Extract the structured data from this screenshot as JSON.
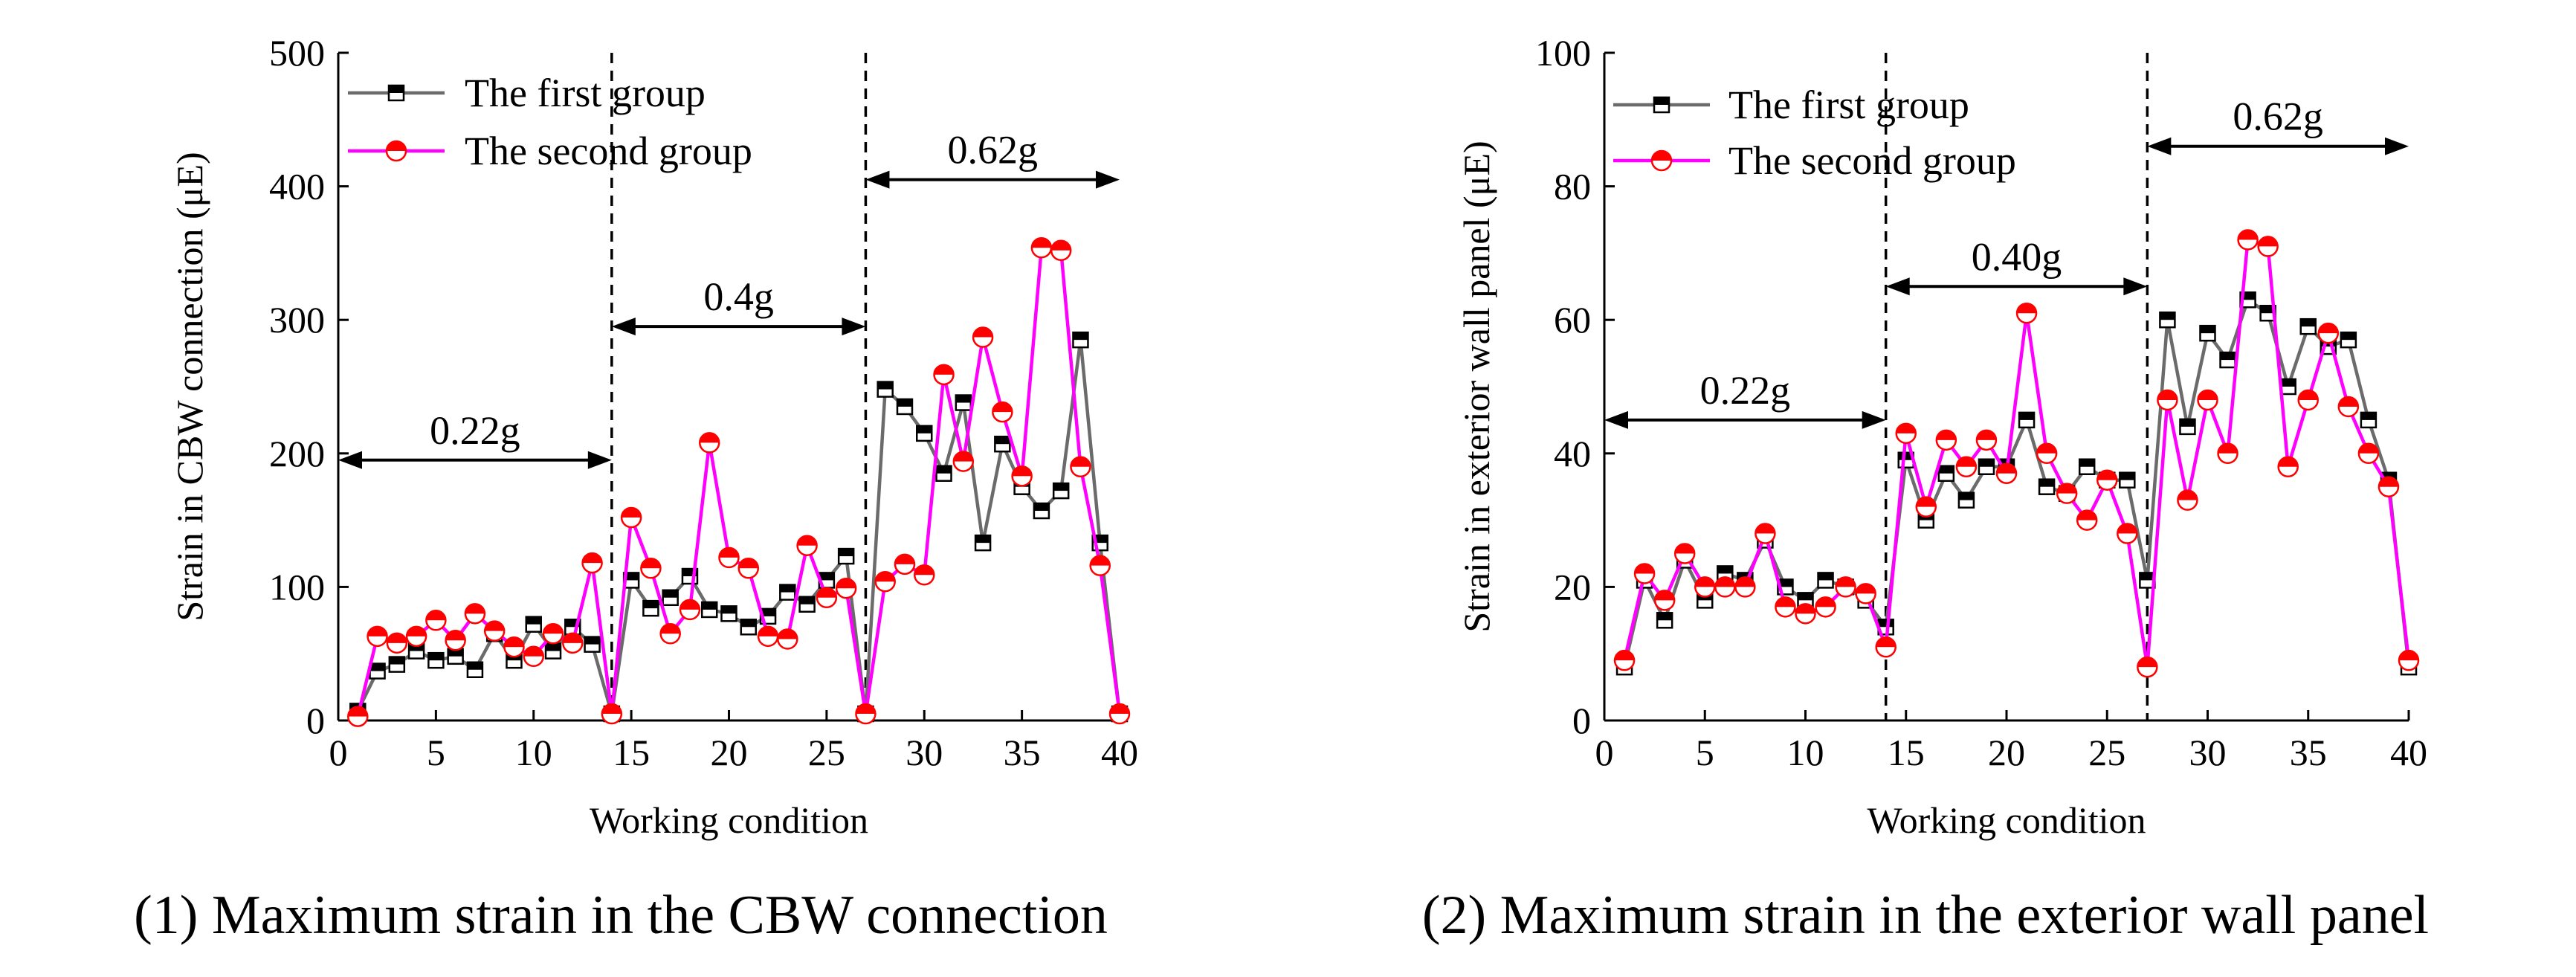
{
  "colors": {
    "series_first_line": "#6b6b6b",
    "series_first_marker": "#000000",
    "series_second_line": "#ff00ff",
    "series_second_marker": "#ff0000"
  },
  "chart_data": [
    {
      "type": "line",
      "caption": "(1) Maximum strain in the CBW connection",
      "xlabel": "Working condition",
      "ylabel": "Strain  in CBW connection (μE)",
      "xlim": [
        0,
        40
      ],
      "ylim": [
        0,
        500
      ],
      "xticks": [
        0,
        5,
        10,
        15,
        20,
        25,
        30,
        35,
        40
      ],
      "yticks": [
        0,
        100,
        200,
        300,
        400,
        500
      ],
      "legend_position": "top-left",
      "dividers": [
        14,
        27
      ],
      "regions": [
        {
          "label": "0.22g",
          "from": 0,
          "to": 14,
          "y": 195
        },
        {
          "label": "0.4g",
          "from": 14,
          "to": 27,
          "y": 295
        },
        {
          "label": "0.62g",
          "from": 27,
          "to": 40,
          "y": 405
        }
      ],
      "x": [
        1,
        2,
        3,
        4,
        5,
        6,
        7,
        8,
        9,
        10,
        11,
        12,
        13,
        14,
        15,
        16,
        17,
        18,
        19,
        20,
        21,
        22,
        23,
        24,
        25,
        26,
        27,
        28,
        29,
        30,
        31,
        32,
        33,
        34,
        35,
        36,
        37,
        38,
        39,
        40
      ],
      "series": [
        {
          "name": "The first group",
          "marker": "square",
          "values": [
            7,
            37,
            42,
            52,
            45,
            48,
            38,
            65,
            45,
            72,
            52,
            70,
            57,
            5,
            105,
            84,
            92,
            108,
            83,
            80,
            70,
            78,
            96,
            87,
            105,
            123,
            5,
            248,
            235,
            215,
            185,
            238,
            133,
            207,
            175,
            157,
            172,
            285,
            133,
            5
          ]
        },
        {
          "name": "The second group",
          "marker": "circle",
          "values": [
            3,
            63,
            58,
            63,
            75,
            60,
            80,
            67,
            55,
            48,
            65,
            58,
            118,
            5,
            152,
            114,
            65,
            83,
            208,
            122,
            114,
            63,
            61,
            131,
            92,
            99,
            5,
            104,
            117,
            109,
            259,
            194,
            287,
            231,
            183,
            354,
            352,
            190,
            116,
            5
          ]
        }
      ]
    },
    {
      "type": "line",
      "caption": "(2) Maximum strain in the exterior wall panel",
      "xlabel": "Working condition",
      "ylabel": "Strain in exterior wall panel (μE)",
      "xlim": [
        0,
        40
      ],
      "ylim": [
        0,
        100
      ],
      "xticks": [
        0,
        5,
        10,
        15,
        20,
        25,
        30,
        35,
        40
      ],
      "yticks": [
        0,
        20,
        40,
        60,
        80,
        100
      ],
      "legend_position": "top-left",
      "dividers": [
        14,
        27
      ],
      "regions": [
        {
          "label": "0.22g",
          "from": 0,
          "to": 14,
          "y": 45
        },
        {
          "label": "0.40g",
          "from": 14,
          "to": 27,
          "y": 65
        },
        {
          "label": "0.62g",
          "from": 27,
          "to": 40,
          "y": 86
        }
      ],
      "x": [
        1,
        2,
        3,
        4,
        5,
        6,
        7,
        8,
        9,
        10,
        11,
        12,
        13,
        14,
        15,
        16,
        17,
        18,
        19,
        20,
        21,
        22,
        23,
        24,
        25,
        26,
        27,
        28,
        29,
        30,
        31,
        32,
        33,
        34,
        35,
        36,
        37,
        38,
        39,
        40
      ],
      "series": [
        {
          "name": "The first group",
          "marker": "square",
          "values": [
            8,
            21,
            15,
            24,
            18,
            22,
            21,
            27,
            20,
            18,
            21,
            20,
            18,
            14,
            39,
            30,
            37,
            33,
            38,
            38,
            45,
            35,
            34,
            38,
            36,
            36,
            21,
            60,
            44,
            58,
            54,
            63,
            61,
            50,
            59,
            56,
            57,
            45,
            36,
            8
          ]
        },
        {
          "name": "The second group",
          "marker": "circle",
          "values": [
            9,
            22,
            18,
            25,
            20,
            20,
            20,
            28,
            17,
            16,
            17,
            20,
            19,
            11,
            43,
            32,
            42,
            38,
            42,
            37,
            61,
            40,
            34,
            30,
            36,
            28,
            8,
            48,
            33,
            48,
            40,
            72,
            71,
            38,
            48,
            58,
            47,
            40,
            35,
            9
          ]
        }
      ]
    }
  ]
}
